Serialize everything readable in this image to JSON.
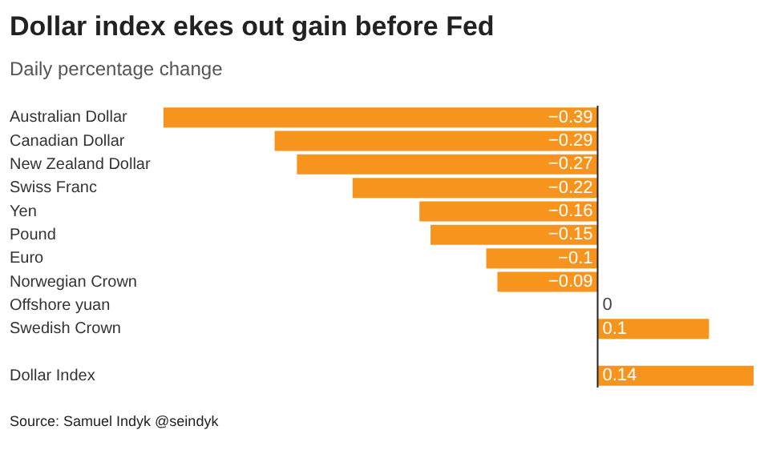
{
  "chart_data": {
    "type": "bar",
    "orientation": "horizontal",
    "title": "Dollar index ekes out gain before Fed",
    "subtitle": "Daily percentage change",
    "categories": [
      "Australian Dollar",
      "Canadian Dollar",
      "New Zealand Dollar",
      "Swiss Franc",
      "Yen",
      "Pound",
      "Euro",
      "Norwegian Crown",
      "Offshore yuan",
      "Swedish Crown",
      null,
      "Dollar Index"
    ],
    "values": [
      -0.39,
      -0.29,
      -0.27,
      -0.22,
      -0.16,
      -0.15,
      -0.1,
      -0.09,
      0,
      0.1,
      null,
      0.14
    ],
    "color": "#f7941d",
    "xlim": [
      -0.39,
      0.14
    ],
    "tick_labels": "y",
    "grid": false,
    "legend": false,
    "data_labels": true,
    "annotations": [
      "Source: Samuel Indyk @seindyk"
    ]
  }
}
